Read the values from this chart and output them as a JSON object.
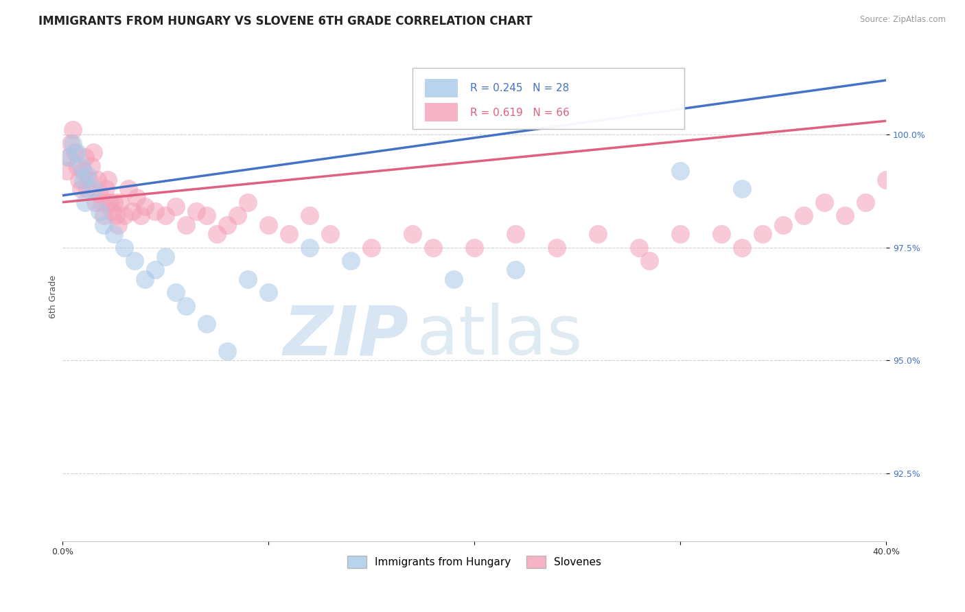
{
  "title": "IMMIGRANTS FROM HUNGARY VS SLOVENE 6TH GRADE CORRELATION CHART",
  "source_text": "Source: ZipAtlas.com",
  "ylabel": "6th Grade",
  "xlim": [
    0.0,
    40.0
  ],
  "ylim": [
    91.0,
    101.8
  ],
  "yticks": [
    92.5,
    95.0,
    97.5,
    100.0
  ],
  "xticks": [
    0.0,
    10.0,
    20.0,
    30.0,
    40.0
  ],
  "xtick_labels": [
    "0.0%",
    "",
    "",
    "",
    "40.0%"
  ],
  "ytick_labels": [
    "92.5%",
    "95.0%",
    "97.5%",
    "100.0%"
  ],
  "legend_r_blue": "R = 0.245",
  "legend_n_blue": "N = 28",
  "legend_r_pink": "R = 0.619",
  "legend_n_pink": "N = 66",
  "legend_label_blue": "Immigrants from Hungary",
  "legend_label_pink": "Slovenes",
  "blue_color": "#A8C8E8",
  "pink_color": "#F4A0B8",
  "blue_line_color": "#4472C4",
  "pink_line_color": "#E06080",
  "blue_line_x0": 0.0,
  "blue_line_y0": 98.65,
  "blue_line_x1": 40.0,
  "blue_line_y1": 101.2,
  "pink_line_x0": 0.0,
  "pink_line_y0": 98.5,
  "pink_line_x1": 40.0,
  "pink_line_y1": 100.3,
  "blue_scatter_x": [
    0.3,
    0.5,
    0.7,
    0.9,
    1.0,
    1.1,
    1.2,
    1.5,
    1.8,
    2.0,
    2.5,
    3.0,
    3.5,
    4.0,
    4.5,
    5.0,
    5.5,
    6.0,
    7.0,
    8.0,
    9.0,
    10.0,
    12.0,
    14.0,
    19.0,
    22.0,
    30.0,
    33.0
  ],
  "blue_scatter_y": [
    99.5,
    99.8,
    99.6,
    99.3,
    99.0,
    98.5,
    99.1,
    98.8,
    98.3,
    98.0,
    97.8,
    97.5,
    97.2,
    96.8,
    97.0,
    97.3,
    96.5,
    96.2,
    95.8,
    95.2,
    96.8,
    96.5,
    97.5,
    97.2,
    96.8,
    97.0,
    99.2,
    98.8
  ],
  "pink_scatter_x": [
    0.2,
    0.3,
    0.4,
    0.5,
    0.6,
    0.7,
    0.8,
    0.9,
    1.0,
    1.1,
    1.2,
    1.3,
    1.4,
    1.5,
    1.6,
    1.7,
    1.8,
    1.9,
    2.0,
    2.1,
    2.2,
    2.3,
    2.4,
    2.5,
    2.6,
    2.7,
    2.8,
    3.0,
    3.2,
    3.4,
    3.6,
    3.8,
    4.0,
    4.5,
    5.0,
    5.5,
    6.0,
    6.5,
    7.0,
    7.5,
    8.0,
    8.5,
    9.0,
    10.0,
    11.0,
    12.0,
    13.0,
    15.0,
    17.0,
    18.0,
    20.0,
    22.0,
    24.0,
    26.0,
    28.0,
    30.0,
    32.0,
    33.0,
    34.0,
    35.0,
    36.0,
    37.0,
    38.0,
    39.0,
    40.0,
    28.5
  ],
  "pink_scatter_y": [
    99.2,
    99.5,
    99.8,
    100.1,
    99.6,
    99.3,
    99.0,
    98.8,
    99.2,
    99.5,
    98.8,
    99.0,
    99.3,
    99.6,
    98.5,
    99.0,
    98.7,
    98.5,
    98.2,
    98.8,
    99.0,
    98.5,
    98.3,
    98.5,
    98.2,
    98.0,
    98.5,
    98.2,
    98.8,
    98.3,
    98.6,
    98.2,
    98.4,
    98.3,
    98.2,
    98.4,
    98.0,
    98.3,
    98.2,
    97.8,
    98.0,
    98.2,
    98.5,
    98.0,
    97.8,
    98.2,
    97.8,
    97.5,
    97.8,
    97.5,
    97.5,
    97.8,
    97.5,
    97.8,
    97.5,
    97.8,
    97.8,
    97.5,
    97.8,
    98.0,
    98.2,
    98.5,
    98.2,
    98.5,
    99.0,
    97.2
  ],
  "watermark_zip": "ZIP",
  "watermark_atlas": "atlas",
  "title_fontsize": 12,
  "axis_label_fontsize": 9,
  "tick_fontsize": 9,
  "legend_fontsize": 11,
  "watermark_color_zip": "#C8DCF0",
  "watermark_color_atlas": "#C0D8E8"
}
